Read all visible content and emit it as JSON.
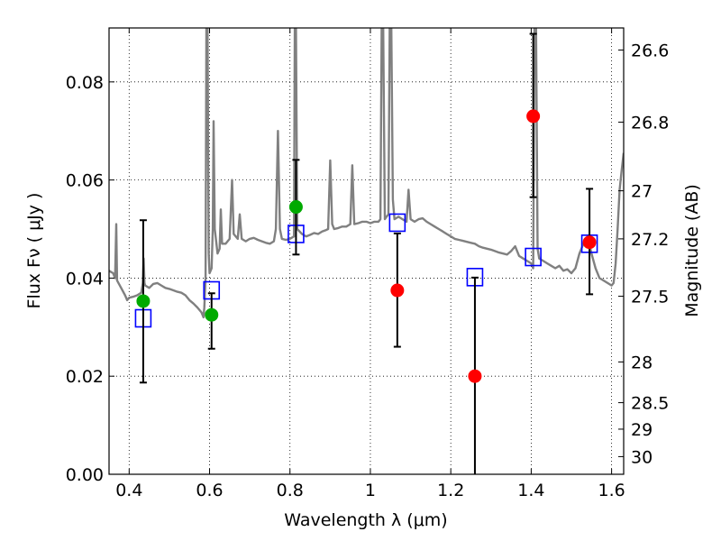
{
  "chart_data": {
    "type": "scatter",
    "title": "",
    "xlabel": "Wavelength  λ (μm)",
    "ylabel": "Flux  Fν  ( μJy )",
    "ylabel_right": "Magnitude (AB)",
    "xlim": [
      0.35,
      1.63
    ],
    "ylim": [
      0.0,
      0.091
    ],
    "grid": true,
    "x_ticks": [
      {
        "value": 0.4,
        "label": "0.4"
      },
      {
        "value": 0.6,
        "label": "0.6"
      },
      {
        "value": 0.8,
        "label": "0.8"
      },
      {
        "value": 1.0,
        "label": "1"
      },
      {
        "value": 1.2,
        "label": "1.2"
      },
      {
        "value": 1.4,
        "label": "1.4"
      },
      {
        "value": 1.6,
        "label": "1.6"
      }
    ],
    "y_ticks": [
      {
        "value": 0.0,
        "label": "0.00"
      },
      {
        "value": 0.02,
        "label": "0.02"
      },
      {
        "value": 0.04,
        "label": "0.04"
      },
      {
        "value": 0.06,
        "label": "0.06"
      },
      {
        "value": 0.08,
        "label": "0.08"
      }
    ],
    "right_ticks": [
      {
        "flux": 0.0865,
        "label": "26.6"
      },
      {
        "flux": 0.0718,
        "label": "26.8"
      },
      {
        "flux": 0.0578,
        "label": "27"
      },
      {
        "flux": 0.048,
        "label": "27.2"
      },
      {
        "flux": 0.0363,
        "label": "27.5"
      },
      {
        "flux": 0.0229,
        "label": "28"
      },
      {
        "flux": 0.0146,
        "label": "28.5"
      },
      {
        "flux": 0.0092,
        "label": "29"
      },
      {
        "flux": 0.0036,
        "label": "30"
      }
    ],
    "series": [
      {
        "kind": "spectrum",
        "color": "#808080",
        "points": [
          [
            0.35,
            0.0415
          ],
          [
            0.36,
            0.041
          ],
          [
            0.365,
            0.04
          ],
          [
            0.368,
            0.051
          ],
          [
            0.37,
            0.0395
          ],
          [
            0.38,
            0.038
          ],
          [
            0.39,
            0.0365
          ],
          [
            0.395,
            0.0355
          ],
          [
            0.4,
            0.036
          ],
          [
            0.41,
            0.0362
          ],
          [
            0.42,
            0.0365
          ],
          [
            0.43,
            0.037
          ],
          [
            0.434,
            0.039
          ],
          [
            0.436,
            0.044
          ],
          [
            0.438,
            0.039
          ],
          [
            0.44,
            0.0385
          ],
          [
            0.45,
            0.038
          ],
          [
            0.46,
            0.0388
          ],
          [
            0.47,
            0.039
          ],
          [
            0.48,
            0.0385
          ],
          [
            0.49,
            0.038
          ],
          [
            0.5,
            0.0378
          ],
          [
            0.51,
            0.0375
          ],
          [
            0.52,
            0.0372
          ],
          [
            0.53,
            0.037
          ],
          [
            0.54,
            0.0365
          ],
          [
            0.55,
            0.0355
          ],
          [
            0.56,
            0.0348
          ],
          [
            0.57,
            0.034
          ],
          [
            0.58,
            0.033
          ],
          [
            0.585,
            0.032
          ],
          [
            0.587,
            0.034
          ],
          [
            0.59,
            0.04
          ],
          [
            0.592,
            0.091
          ],
          [
            0.595,
            0.091
          ],
          [
            0.598,
            0.045
          ],
          [
            0.6,
            0.041
          ],
          [
            0.605,
            0.042
          ],
          [
            0.608,
            0.05
          ],
          [
            0.61,
            0.072
          ],
          [
            0.613,
            0.05
          ],
          [
            0.62,
            0.045
          ],
          [
            0.625,
            0.046
          ],
          [
            0.628,
            0.054
          ],
          [
            0.631,
            0.047
          ],
          [
            0.64,
            0.047
          ],
          [
            0.65,
            0.048
          ],
          [
            0.656,
            0.06
          ],
          [
            0.66,
            0.049
          ],
          [
            0.67,
            0.048
          ],
          [
            0.675,
            0.053
          ],
          [
            0.68,
            0.048
          ],
          [
            0.69,
            0.0475
          ],
          [
            0.7,
            0.048
          ],
          [
            0.71,
            0.0482
          ],
          [
            0.72,
            0.0478
          ],
          [
            0.73,
            0.0475
          ],
          [
            0.74,
            0.0472
          ],
          [
            0.75,
            0.047
          ],
          [
            0.76,
            0.0475
          ],
          [
            0.765,
            0.05
          ],
          [
            0.77,
            0.07
          ],
          [
            0.775,
            0.05
          ],
          [
            0.78,
            0.048
          ],
          [
            0.79,
            0.0478
          ],
          [
            0.8,
            0.048
          ],
          [
            0.81,
            0.0485
          ],
          [
            0.812,
            0.091
          ],
          [
            0.815,
            0.091
          ],
          [
            0.818,
            0.05
          ],
          [
            0.83,
            0.049
          ],
          [
            0.84,
            0.0485
          ],
          [
            0.85,
            0.0488
          ],
          [
            0.86,
            0.0492
          ],
          [
            0.87,
            0.049
          ],
          [
            0.88,
            0.0495
          ],
          [
            0.89,
            0.0498
          ],
          [
            0.895,
            0.05
          ],
          [
            0.9,
            0.064
          ],
          [
            0.905,
            0.051
          ],
          [
            0.91,
            0.05
          ],
          [
            0.92,
            0.0502
          ],
          [
            0.93,
            0.0505
          ],
          [
            0.94,
            0.0505
          ],
          [
            0.95,
            0.051
          ],
          [
            0.955,
            0.063
          ],
          [
            0.96,
            0.051
          ],
          [
            0.97,
            0.0512
          ],
          [
            0.98,
            0.0515
          ],
          [
            0.99,
            0.0515
          ],
          [
            1.0,
            0.0512
          ],
          [
            1.01,
            0.0515
          ],
          [
            1.02,
            0.0515
          ],
          [
            1.025,
            0.052
          ],
          [
            1.028,
            0.091
          ],
          [
            1.032,
            0.091
          ],
          [
            1.036,
            0.052
          ],
          [
            1.04,
            0.0525
          ],
          [
            1.045,
            0.053
          ],
          [
            1.048,
            0.091
          ],
          [
            1.052,
            0.091
          ],
          [
            1.056,
            0.056
          ],
          [
            1.06,
            0.052
          ],
          [
            1.07,
            0.0525
          ],
          [
            1.08,
            0.052
          ],
          [
            1.09,
            0.0515
          ],
          [
            1.095,
            0.058
          ],
          [
            1.1,
            0.052
          ],
          [
            1.11,
            0.0515
          ],
          [
            1.12,
            0.052
          ],
          [
            1.13,
            0.0522
          ],
          [
            1.14,
            0.0515
          ],
          [
            1.15,
            0.051
          ],
          [
            1.16,
            0.0505
          ],
          [
            1.17,
            0.05
          ],
          [
            1.18,
            0.0495
          ],
          [
            1.19,
            0.049
          ],
          [
            1.2,
            0.0485
          ],
          [
            1.21,
            0.048
          ],
          [
            1.22,
            0.0478
          ],
          [
            1.23,
            0.0476
          ],
          [
            1.24,
            0.0474
          ],
          [
            1.25,
            0.0472
          ],
          [
            1.26,
            0.047
          ],
          [
            1.27,
            0.0465
          ],
          [
            1.28,
            0.0462
          ],
          [
            1.29,
            0.046
          ],
          [
            1.3,
            0.0458
          ],
          [
            1.31,
            0.0455
          ],
          [
            1.32,
            0.0452
          ],
          [
            1.33,
            0.045
          ],
          [
            1.34,
            0.0448
          ],
          [
            1.35,
            0.0455
          ],
          [
            1.36,
            0.0465
          ],
          [
            1.37,
            0.0445
          ],
          [
            1.38,
            0.044
          ],
          [
            1.39,
            0.0435
          ],
          [
            1.4,
            0.043
          ],
          [
            1.405,
            0.042
          ],
          [
            1.408,
            0.091
          ],
          [
            1.412,
            0.091
          ],
          [
            1.416,
            0.046
          ],
          [
            1.42,
            0.044
          ],
          [
            1.43,
            0.0435
          ],
          [
            1.44,
            0.043
          ],
          [
            1.45,
            0.0425
          ],
          [
            1.46,
            0.042
          ],
          [
            1.47,
            0.0425
          ],
          [
            1.48,
            0.0415
          ],
          [
            1.49,
            0.0418
          ],
          [
            1.5,
            0.041
          ],
          [
            1.51,
            0.042
          ],
          [
            1.52,
            0.045
          ],
          [
            1.53,
            0.047
          ],
          [
            1.54,
            0.0485
          ],
          [
            1.55,
            0.045
          ],
          [
            1.56,
            0.042
          ],
          [
            1.57,
            0.04
          ],
          [
            1.58,
            0.0395
          ],
          [
            1.59,
            0.039
          ],
          [
            1.6,
            0.0385
          ],
          [
            1.605,
            0.039
          ],
          [
            1.61,
            0.043
          ],
          [
            1.615,
            0.05
          ],
          [
            1.62,
            0.058
          ],
          [
            1.625,
            0.062
          ],
          [
            1.63,
            0.0655
          ]
        ]
      },
      {
        "kind": "model-photometry",
        "marker": "square",
        "color": "#0000ff",
        "points": [
          [
            0.435,
            0.0318
          ],
          [
            0.605,
            0.0375
          ],
          [
            0.815,
            0.049
          ],
          [
            1.067,
            0.0513
          ],
          [
            1.26,
            0.0402
          ],
          [
            1.405,
            0.0443
          ],
          [
            1.545,
            0.047
          ]
        ]
      },
      {
        "kind": "observed-photometry",
        "marker": "circle",
        "color": "#00aa00",
        "points": [
          {
            "x": 0.435,
            "y": 0.0353,
            "yerr": [
              0.0187,
              0.0518
            ]
          },
          {
            "x": 0.605,
            "y": 0.0325,
            "yerr": [
              0.0256,
              0.0369
            ]
          },
          {
            "x": 0.815,
            "y": 0.0545,
            "yerr": [
              0.0448,
              0.0641
            ]
          }
        ]
      },
      {
        "kind": "observed-photometry",
        "marker": "circle",
        "color": "#ff0000",
        "points": [
          {
            "x": 1.067,
            "y": 0.0375,
            "yerr": [
              0.026,
              0.0491
            ]
          },
          {
            "x": 1.26,
            "y": 0.02,
            "yerr": [
              0.0,
              0.0401
            ]
          },
          {
            "x": 1.405,
            "y": 0.073,
            "yerr": [
              0.0565,
              0.0898
            ]
          },
          {
            "x": 1.545,
            "y": 0.0473,
            "yerr": [
              0.0367,
              0.0582
            ]
          }
        ]
      }
    ]
  }
}
